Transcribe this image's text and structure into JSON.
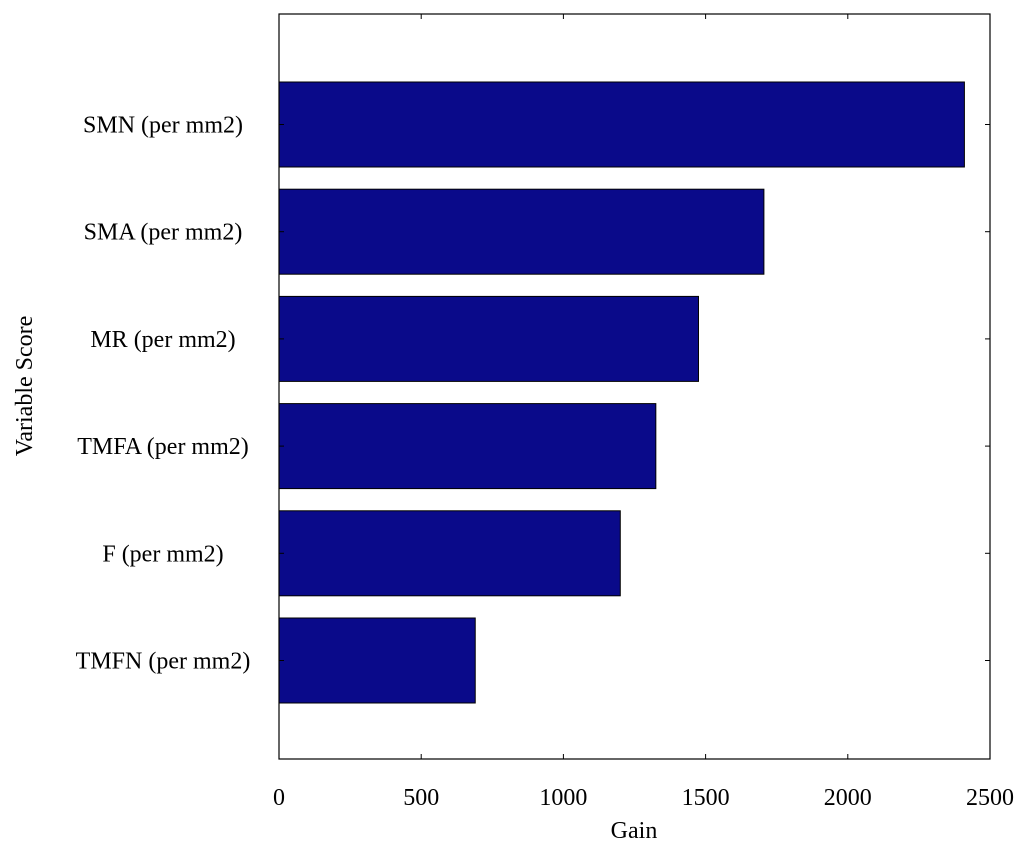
{
  "chart_data": {
    "type": "bar",
    "orientation": "horizontal",
    "categories": [
      "SMN (per mm2)",
      "SMA (per mm2)",
      "MR (per mm2)",
      "TMFA (per mm2)",
      "F (per mm2)",
      "TMFN (per mm2)"
    ],
    "values": [
      2410,
      1705,
      1475,
      1325,
      1200,
      690
    ],
    "title": "",
    "xlabel": "Gain",
    "ylabel": "Variable Score",
    "xlim": [
      0,
      2500
    ],
    "xticks": [
      0,
      500,
      1000,
      1500,
      2000,
      2500
    ],
    "xtick_labels": [
      "0",
      "500",
      "1000",
      "1500",
      "2000",
      "2500"
    ],
    "grid": false,
    "bar_color": "#0a0a8a",
    "bar_edge_color": "#000000"
  }
}
